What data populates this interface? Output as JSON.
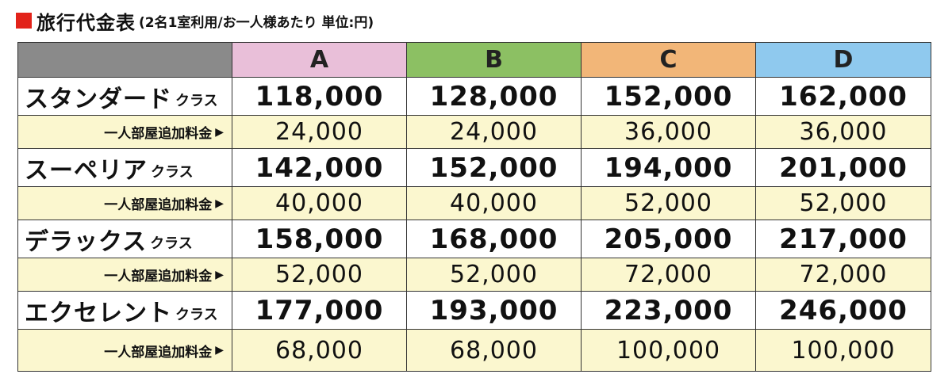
{
  "title": {
    "main": "旅行代金表",
    "sub": "(2名1室利用/お一人様あたり 単位:円)"
  },
  "columns": [
    "A",
    "B",
    "C",
    "D"
  ],
  "supplement_label": "一人部屋追加料金",
  "rows": [
    {
      "name": "スタンダード",
      "suffix": "クラス",
      "prices": [
        "118,000",
        "128,000",
        "152,000",
        "162,000"
      ],
      "supplement": [
        "24,000",
        "24,000",
        "36,000",
        "36,000"
      ]
    },
    {
      "name": "スーペリア",
      "suffix": "クラス",
      "prices": [
        "142,000",
        "152,000",
        "194,000",
        "201,000"
      ],
      "supplement": [
        "40,000",
        "40,000",
        "52,000",
        "52,000"
      ]
    },
    {
      "name": "デラックス",
      "suffix": "クラス",
      "prices": [
        "158,000",
        "168,000",
        "205,000",
        "217,000"
      ],
      "supplement": [
        "52,000",
        "52,000",
        "72,000",
        "72,000"
      ]
    },
    {
      "name": "エクセレント",
      "suffix": "クラス",
      "prices": [
        "177,000",
        "193,000",
        "223,000",
        "246,000"
      ],
      "supplement": [
        "68,000",
        "68,000",
        "100,000",
        "100,000"
      ]
    }
  ],
  "colors": {
    "title_square": "#e2231a",
    "header_corner": "#8a8a8a",
    "header_A": "#e9bfd9",
    "header_B": "#8cc063",
    "header_C": "#f2b678",
    "header_D": "#8fc9ee",
    "supplement_row": "#fbf7cf"
  }
}
